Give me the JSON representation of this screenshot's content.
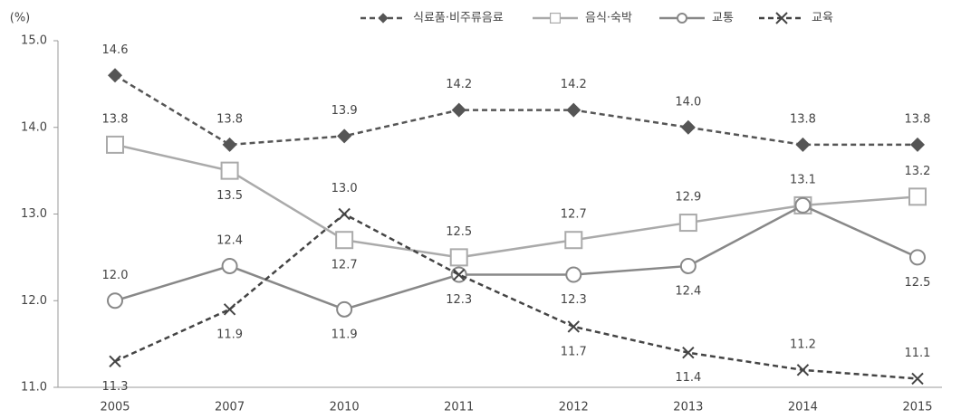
{
  "chart_data": {
    "type": "line",
    "y_label": "(%)",
    "categories": [
      "2005",
      "2007",
      "2010",
      "2011",
      "2012",
      "2013",
      "2014",
      "2015"
    ],
    "series": [
      {
        "name": "식료품·비주류음료",
        "color": "#555555",
        "dashed": true,
        "marker": "diamond",
        "values": [
          14.6,
          13.8,
          13.9,
          14.2,
          14.2,
          14.0,
          13.8,
          13.8
        ],
        "value_labels": [
          "14.6",
          "13.8",
          "13.9",
          "14.2",
          "14.2",
          "14.0",
          "13.8",
          "13.8"
        ]
      },
      {
        "name": "음식·숙박",
        "color": "#aaaaaa",
        "dashed": false,
        "marker": "square",
        "values": [
          13.8,
          13.5,
          12.7,
          12.5,
          12.7,
          12.9,
          13.1,
          13.2
        ],
        "value_labels": [
          "13.8",
          "13.5",
          "12.7",
          "12.5",
          "12.7",
          "12.9",
          "13.1",
          "13.2"
        ]
      },
      {
        "name": "교통",
        "color": "#888888",
        "dashed": false,
        "marker": "circle",
        "values": [
          12.0,
          12.4,
          11.9,
          12.3,
          12.3,
          12.4,
          13.1,
          12.5
        ],
        "value_labels": [
          "12.0",
          "12.4",
          "11.9",
          "12.3",
          "12.3",
          "12.4",
          null,
          "12.5"
        ]
      },
      {
        "name": "교육",
        "color": "#444444",
        "dashed": true,
        "marker": "x",
        "values": [
          11.3,
          11.9,
          13.0,
          12.3,
          11.7,
          11.4,
          11.2,
          11.1
        ],
        "value_labels": [
          "11.3",
          "11.9",
          "13.0",
          null,
          "11.7",
          "11.4",
          "11.2",
          "11.1"
        ]
      }
    ],
    "ylim": [
      11,
      15
    ],
    "yticks": [
      {
        "value": 11,
        "label": "11.0"
      },
      {
        "value": 12,
        "label": "12.0"
      },
      {
        "value": 13,
        "label": "13.0"
      },
      {
        "value": 14,
        "label": "14.0"
      },
      {
        "value": 15,
        "label": "15.0"
      }
    ],
    "legend": "top-right",
    "grid": false
  }
}
